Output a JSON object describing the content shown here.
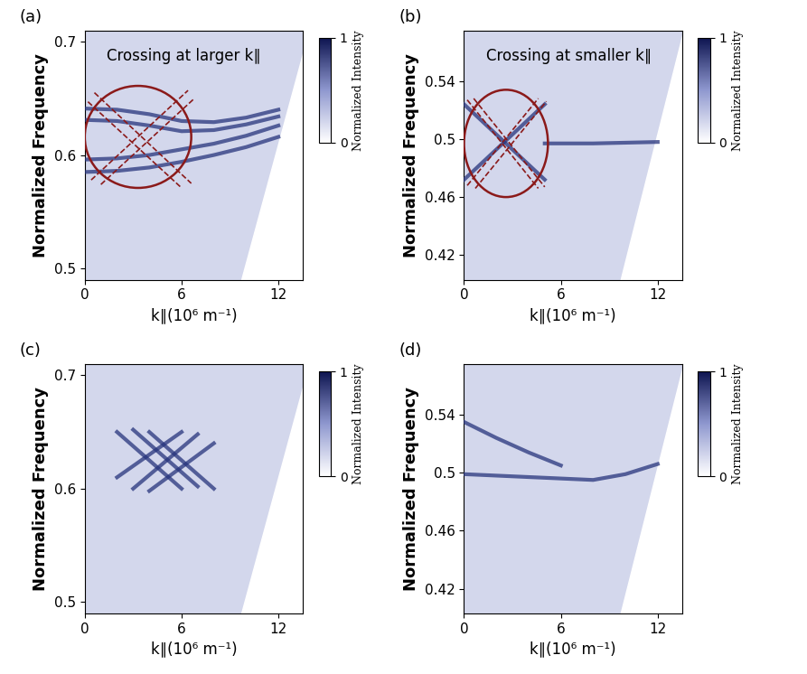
{
  "chart_data": [
    {
      "type": "line",
      "title": "(a)",
      "annotation": "Crossing at larger k∥",
      "x_label": "k∥(10⁶ m⁻¹)",
      "y_label": "Normalized Frequency",
      "xlim": [
        0,
        13.5
      ],
      "xticks": [
        0,
        6,
        12
      ],
      "ylim": [
        0.49,
        0.71
      ],
      "yticks": [
        0.5,
        0.6,
        0.7
      ],
      "grid": false,
      "colorbar": {
        "label": "Normalized Intensity",
        "range": [
          0,
          1
        ],
        "ticks": [
          0,
          1
        ]
      },
      "circle": {
        "x": 3.3,
        "y": 0.616,
        "x_radius": 3.3,
        "y_radius": 0.045,
        "color": "#8b1a1a"
      },
      "series": [
        {
          "type": "boundary",
          "color": "#ffffff",
          "x": [
            9.7,
            13.9
          ],
          "values": [
            0.49,
            0.71
          ]
        },
        {
          "type": "line",
          "color": "#27347c",
          "line_style": "solid",
          "x": [
            0,
            2,
            4,
            6,
            8,
            10,
            12
          ],
          "values": [
            0.641,
            0.64,
            0.636,
            0.63,
            0.629,
            0.633,
            0.64
          ]
        },
        {
          "type": "line",
          "color": "#27347c",
          "line_style": "solid",
          "x": [
            0,
            2,
            4,
            6,
            8,
            10,
            12
          ],
          "values": [
            0.631,
            0.63,
            0.626,
            0.621,
            0.622,
            0.627,
            0.634
          ]
        },
        {
          "type": "line",
          "color": "#27347c",
          "line_style": "solid",
          "x": [
            0,
            2,
            4,
            6,
            8,
            10,
            12
          ],
          "values": [
            0.596,
            0.597,
            0.6,
            0.605,
            0.61,
            0.617,
            0.626
          ]
        },
        {
          "type": "line",
          "color": "#27347c",
          "line_style": "solid",
          "x": [
            0,
            2,
            4,
            6,
            8,
            10,
            12
          ],
          "values": [
            0.585,
            0.586,
            0.589,
            0.594,
            0.6,
            0.607,
            0.616
          ]
        },
        {
          "type": "line",
          "color": "#8b1a1a",
          "line_style": "dashed",
          "x": [
            0.6,
            6.6
          ],
          "values": [
            0.655,
            0.575
          ]
        },
        {
          "type": "line",
          "color": "#8b1a1a",
          "line_style": "dashed",
          "x": [
            0.2,
            6.0
          ],
          "values": [
            0.647,
            0.571
          ]
        },
        {
          "type": "line",
          "color": "#8b1a1a",
          "line_style": "dashed",
          "x": [
            0.4,
            6.4
          ],
          "values": [
            0.578,
            0.657
          ]
        },
        {
          "type": "line",
          "color": "#8b1a1a",
          "line_style": "dashed",
          "x": [
            1.0,
            6.8
          ],
          "values": [
            0.574,
            0.65
          ]
        }
      ]
    },
    {
      "type": "line",
      "title": "(b)",
      "annotation": "Crossing at smaller k∥",
      "x_label": "k∥(10⁶ m⁻¹)",
      "y_label": "Normalized Frequency",
      "xlim": [
        0,
        13.5
      ],
      "xticks": [
        0,
        6,
        12
      ],
      "ylim": [
        0.403,
        0.575
      ],
      "yticks": [
        0.42,
        0.46,
        0.5,
        0.54
      ],
      "grid": false,
      "colorbar": {
        "label": "Normalized Intensity",
        "range": [
          0,
          1
        ],
        "ticks": [
          0,
          1
        ]
      },
      "circle": {
        "x": 2.6,
        "y": 0.497,
        "x_radius": 2.6,
        "y_radius": 0.037,
        "color": "#8b1a1a"
      },
      "series": [
        {
          "type": "boundary",
          "color": "#ffffff",
          "x": [
            9.7,
            13.6
          ],
          "values": [
            0.403,
            0.575
          ]
        },
        {
          "type": "line",
          "color": "#27347c",
          "line_style": "solid",
          "x": [
            0,
            2.5,
            5
          ],
          "values": [
            0.524,
            0.498,
            0.472
          ]
        },
        {
          "type": "line",
          "color": "#27347c",
          "line_style": "solid",
          "x": [
            0,
            2.5,
            5
          ],
          "values": [
            0.472,
            0.498,
            0.524
          ]
        },
        {
          "type": "line",
          "color": "#27347c",
          "line_style": "solid",
          "x": [
            5,
            8,
            12
          ],
          "values": [
            0.497,
            0.497,
            0.498
          ]
        },
        {
          "type": "line",
          "color": "#8b1a1a",
          "line_style": "dashed",
          "x": [
            0.2,
            4.6
          ],
          "values": [
            0.527,
            0.466
          ]
        },
        {
          "type": "line",
          "color": "#8b1a1a",
          "line_style": "dashed",
          "x": [
            0.6,
            5.0
          ],
          "values": [
            0.528,
            0.467
          ]
        },
        {
          "type": "line",
          "color": "#8b1a1a",
          "line_style": "dashed",
          "x": [
            0.2,
            4.6
          ],
          "values": [
            0.468,
            0.528
          ]
        },
        {
          "type": "line",
          "color": "#8b1a1a",
          "line_style": "dashed",
          "x": [
            0.7,
            5.1
          ],
          "values": [
            0.466,
            0.526
          ]
        }
      ]
    },
    {
      "type": "line",
      "title": "(c)",
      "x_label": "k∥(10⁶ m⁻¹)",
      "y_label": "Normalized Frequency",
      "xlim": [
        0,
        13.5
      ],
      "xticks": [
        0,
        6,
        12
      ],
      "ylim": [
        0.49,
        0.71
      ],
      "yticks": [
        0.5,
        0.6,
        0.7
      ],
      "grid": false,
      "colorbar": {
        "label": "Normalized Intensity",
        "range": [
          0,
          1
        ],
        "ticks": [
          0,
          1
        ]
      },
      "series": [
        {
          "type": "boundary",
          "color": "#ffffff",
          "x": [
            9.7,
            13.9
          ],
          "values": [
            0.49,
            0.71
          ]
        },
        {
          "type": "line",
          "color": "#27347c",
          "line_style": "solid",
          "x": [
            2,
            6
          ],
          "values": [
            0.65,
            0.6
          ]
        },
        {
          "type": "line",
          "color": "#27347c",
          "line_style": "solid",
          "x": [
            3,
            7
          ],
          "values": [
            0.652,
            0.602
          ]
        },
        {
          "type": "line",
          "color": "#27347c",
          "line_style": "solid",
          "x": [
            4,
            8
          ],
          "values": [
            0.65,
            0.6
          ]
        },
        {
          "type": "line",
          "color": "#27347c",
          "line_style": "solid",
          "x": [
            2,
            6
          ],
          "values": [
            0.61,
            0.65
          ]
        },
        {
          "type": "line",
          "color": "#27347c",
          "line_style": "solid",
          "x": [
            3,
            7
          ],
          "values": [
            0.6,
            0.648
          ]
        },
        {
          "type": "line",
          "color": "#27347c",
          "line_style": "solid",
          "x": [
            4,
            8
          ],
          "values": [
            0.598,
            0.64
          ]
        }
      ]
    },
    {
      "type": "line",
      "title": "(d)",
      "x_label": "k∥(10⁶ m⁻¹)",
      "y_label": "Normalized Frequency",
      "xlim": [
        0,
        13.5
      ],
      "xticks": [
        0,
        6,
        12
      ],
      "ylim": [
        0.403,
        0.575
      ],
      "yticks": [
        0.42,
        0.46,
        0.5,
        0.54
      ],
      "grid": false,
      "colorbar": {
        "label": "Normalized Intensity",
        "range": [
          0,
          1
        ],
        "ticks": [
          0,
          1
        ]
      },
      "series": [
        {
          "type": "boundary",
          "color": "#ffffff",
          "x": [
            9.7,
            13.6
          ],
          "values": [
            0.403,
            0.575
          ]
        },
        {
          "type": "line",
          "color": "#27347c",
          "line_style": "solid",
          "x": [
            0,
            2,
            4,
            6,
            8,
            10,
            12
          ],
          "values": [
            0.499,
            0.498,
            0.497,
            0.496,
            0.495,
            0.499,
            0.506
          ]
        },
        {
          "type": "line",
          "color": "#27347c",
          "line_style": "solid",
          "x": [
            0,
            2,
            4,
            6
          ],
          "values": [
            0.535,
            0.524,
            0.514,
            0.505
          ]
        }
      ]
    }
  ]
}
